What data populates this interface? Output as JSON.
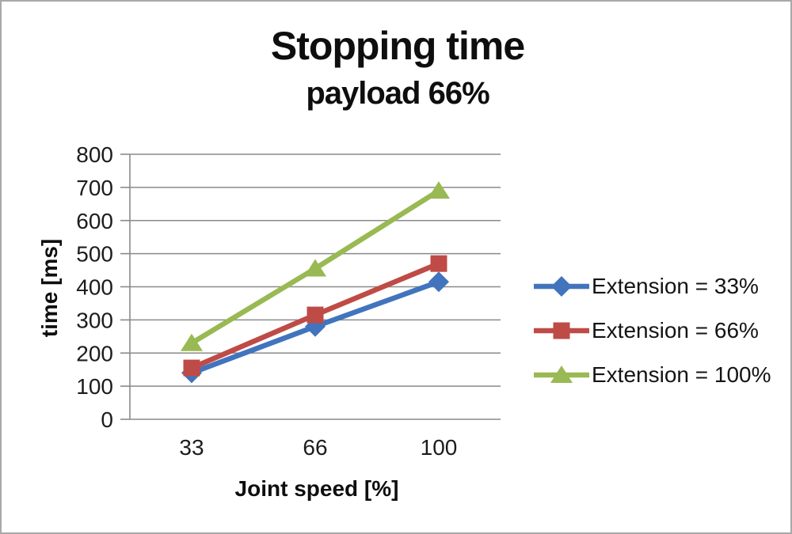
{
  "frame": {
    "background": "#ffffff",
    "border_color": "#a9a9a9"
  },
  "chart_data": {
    "type": "line",
    "title": "Stopping time",
    "subtitle": "payload 66%",
    "xlabel": "Joint speed [%]",
    "ylabel": "time [ms]",
    "categories": [
      "33",
      "66",
      "100"
    ],
    "series": [
      {
        "name": "Extension = 33%",
        "marker": "diamond",
        "color": "#4274BE",
        "values": [
          140,
          280,
          415
        ]
      },
      {
        "name": "Extension = 66%",
        "marker": "square",
        "color": "#BF4B47",
        "values": [
          155,
          315,
          470
        ]
      },
      {
        "name": "Extension = 100%",
        "marker": "triangle",
        "color": "#99B953",
        "values": [
          230,
          455,
          690
        ]
      }
    ],
    "ylim": [
      0,
      800
    ],
    "yticks": [
      0,
      100,
      200,
      300,
      400,
      500,
      600,
      700,
      800
    ],
    "grid": true,
    "legend_position": "right",
    "gridline_color": "#8a8a8a",
    "text_color": "#1c1c1c"
  }
}
